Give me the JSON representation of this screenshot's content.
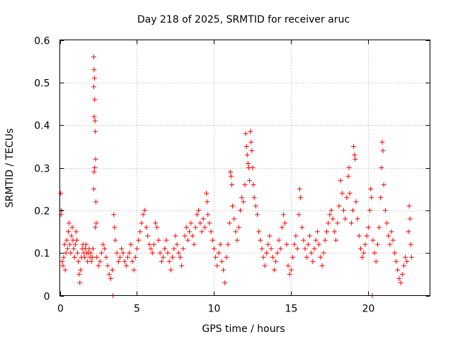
{
  "chart_data": {
    "type": "scatter",
    "title": "Day 218 of 2025, SRMTID for receiver aruc",
    "xlabel": "GPS time / hours",
    "ylabel": "SRMTID / TECUs",
    "xlim": [
      0,
      24
    ],
    "ylim": [
      0,
      0.6
    ],
    "x_ticks": [
      0,
      5,
      10,
      15,
      20
    ],
    "x_tick_labels": [
      "0",
      "5",
      "10",
      "15",
      "20"
    ],
    "y_ticks": [
      0,
      0.1,
      0.2,
      0.3,
      0.4,
      0.5,
      0.6
    ],
    "y_tick_labels": [
      "0",
      "0.1",
      "0.2",
      "0.3",
      "0.4",
      "0.5",
      "0.6"
    ],
    "grid": true,
    "marker": "+",
    "marker_color": "#ff0000",
    "series": [
      {
        "name": "SRMTID",
        "points": [
          [
            0.05,
            0.24
          ],
          [
            0.1,
            0.2
          ],
          [
            0.08,
            0.19
          ],
          [
            0.15,
            0.08
          ],
          [
            0.2,
            0.07
          ],
          [
            0.25,
            0.09
          ],
          [
            0.3,
            0.12
          ],
          [
            0.35,
            0.06
          ],
          [
            0.4,
            0.1
          ],
          [
            0.45,
            0.13
          ],
          [
            0.5,
            0.11
          ],
          [
            0.55,
            0.15
          ],
          [
            0.6,
            0.17
          ],
          [
            0.65,
            0.12
          ],
          [
            0.7,
            0.1
          ],
          [
            0.75,
            0.14
          ],
          [
            0.8,
            0.16
          ],
          [
            0.85,
            0.13
          ],
          [
            0.9,
            0.11
          ],
          [
            0.95,
            0.09
          ],
          [
            1.0,
            0.12
          ],
          [
            1.05,
            0.15
          ],
          [
            1.1,
            0.13
          ],
          [
            1.15,
            0.1
          ],
          [
            1.2,
            0.08
          ],
          [
            1.25,
            0.05
          ],
          [
            1.3,
            0.03
          ],
          [
            1.35,
            0.06
          ],
          [
            1.4,
            0.09
          ],
          [
            1.45,
            0.11
          ],
          [
            1.5,
            0.12
          ],
          [
            1.55,
            0.1
          ],
          [
            1.6,
            0.09
          ],
          [
            1.65,
            0.11
          ],
          [
            1.7,
            0.12
          ],
          [
            1.75,
            0.1
          ],
          [
            1.8,
            0.08
          ],
          [
            1.85,
            0.1
          ],
          [
            1.9,
            0.11
          ],
          [
            1.95,
            0.09
          ],
          [
            2.0,
            0.1
          ],
          [
            2.05,
            0.08
          ],
          [
            2.1,
            0.09
          ],
          [
            2.15,
            0.11
          ],
          [
            2.2,
            0.56
          ],
          [
            2.22,
            0.53
          ],
          [
            2.24,
            0.51
          ],
          [
            2.2,
            0.49
          ],
          [
            2.26,
            0.46
          ],
          [
            2.22,
            0.42
          ],
          [
            2.28,
            0.41
          ],
          [
            2.3,
            0.385
          ],
          [
            2.32,
            0.32
          ],
          [
            2.26,
            0.3
          ],
          [
            2.22,
            0.29
          ],
          [
            2.2,
            0.25
          ],
          [
            2.34,
            0.22
          ],
          [
            2.36,
            0.17
          ],
          [
            2.3,
            0.16
          ],
          [
            2.4,
            0.09
          ],
          [
            2.5,
            0.07
          ],
          [
            2.6,
            0.08
          ],
          [
            2.7,
            0.1
          ],
          [
            2.8,
            0.12
          ],
          [
            2.9,
            0.11
          ],
          [
            3.0,
            0.09
          ],
          [
            3.1,
            0.07
          ],
          [
            3.2,
            0.05
          ],
          [
            3.3,
            0.04
          ],
          [
            3.4,
            0.06
          ],
          [
            3.45,
            0.0
          ],
          [
            3.5,
            0.19
          ],
          [
            3.55,
            0.16
          ],
          [
            3.6,
            0.13
          ],
          [
            3.7,
            0.1
          ],
          [
            3.8,
            0.08
          ],
          [
            3.9,
            0.09
          ],
          [
            4.0,
            0.11
          ],
          [
            4.1,
            0.1
          ],
          [
            4.2,
            0.08
          ],
          [
            4.3,
            0.07
          ],
          [
            4.4,
            0.09
          ],
          [
            4.5,
            0.1
          ],
          [
            4.6,
            0.12
          ],
          [
            4.7,
            0.08
          ],
          [
            4.8,
            0.06
          ],
          [
            4.9,
            0.09
          ],
          [
            5.0,
            0.11
          ],
          [
            5.1,
            0.13
          ],
          [
            5.2,
            0.15
          ],
          [
            5.3,
            0.17
          ],
          [
            5.4,
            0.19
          ],
          [
            5.5,
            0.2
          ],
          [
            5.6,
            0.16
          ],
          [
            5.7,
            0.14
          ],
          [
            5.8,
            0.12
          ],
          [
            5.9,
            0.11
          ],
          [
            6.0,
            0.1
          ],
          [
            6.1,
            0.12
          ],
          [
            6.2,
            0.17
          ],
          [
            6.3,
            0.16
          ],
          [
            6.4,
            0.13
          ],
          [
            6.5,
            0.1
          ],
          [
            6.6,
            0.08
          ],
          [
            6.7,
            0.09
          ],
          [
            6.8,
            0.11
          ],
          [
            6.9,
            0.13
          ],
          [
            7.0,
            0.1
          ],
          [
            7.1,
            0.08
          ],
          [
            7.2,
            0.06
          ],
          [
            7.3,
            0.09
          ],
          [
            7.4,
            0.11
          ],
          [
            7.5,
            0.14
          ],
          [
            7.6,
            0.12
          ],
          [
            7.7,
            0.1
          ],
          [
            7.8,
            0.09
          ],
          [
            7.9,
            0.07
          ],
          [
            8.0,
            0.11
          ],
          [
            8.1,
            0.14
          ],
          [
            8.2,
            0.16
          ],
          [
            8.3,
            0.13
          ],
          [
            8.4,
            0.15
          ],
          [
            8.5,
            0.17
          ],
          [
            8.6,
            0.14
          ],
          [
            8.7,
            0.12
          ],
          [
            8.8,
            0.16
          ],
          [
            8.9,
            0.19
          ],
          [
            9.0,
            0.2
          ],
          [
            9.1,
            0.17
          ],
          [
            9.2,
            0.15
          ],
          [
            9.3,
            0.18
          ],
          [
            9.4,
            0.16
          ],
          [
            9.5,
            0.24
          ],
          [
            9.55,
            0.22
          ],
          [
            9.6,
            0.19
          ],
          [
            9.7,
            0.17
          ],
          [
            9.8,
            0.15
          ],
          [
            9.9,
            0.13
          ],
          [
            10.0,
            0.11
          ],
          [
            10.1,
            0.09
          ],
          [
            10.2,
            0.07
          ],
          [
            10.3,
            0.1
          ],
          [
            10.4,
            0.12
          ],
          [
            10.5,
            0.08
          ],
          [
            10.6,
            0.06
          ],
          [
            10.7,
            0.03
          ],
          [
            10.8,
            0.09
          ],
          [
            10.9,
            0.12
          ],
          [
            11.0,
            0.17
          ],
          [
            11.05,
            0.29
          ],
          [
            11.1,
            0.28
          ],
          [
            11.15,
            0.26
          ],
          [
            11.2,
            0.21
          ],
          [
            11.3,
            0.18
          ],
          [
            11.4,
            0.15
          ],
          [
            11.5,
            0.13
          ],
          [
            11.6,
            0.16
          ],
          [
            11.7,
            0.2
          ],
          [
            11.8,
            0.23
          ],
          [
            11.9,
            0.22
          ],
          [
            12.0,
            0.26
          ],
          [
            12.05,
            0.38
          ],
          [
            12.1,
            0.35
          ],
          [
            12.15,
            0.33
          ],
          [
            12.2,
            0.31
          ],
          [
            12.25,
            0.3
          ],
          [
            12.3,
            0.27
          ],
          [
            12.35,
            0.385
          ],
          [
            12.4,
            0.36
          ],
          [
            12.45,
            0.34
          ],
          [
            12.5,
            0.3
          ],
          [
            12.55,
            0.26
          ],
          [
            12.6,
            0.23
          ],
          [
            12.7,
            0.21
          ],
          [
            12.8,
            0.19
          ],
          [
            12.9,
            0.15
          ],
          [
            13.0,
            0.13
          ],
          [
            13.1,
            0.11
          ],
          [
            13.2,
            0.09
          ],
          [
            13.3,
            0.07
          ],
          [
            13.4,
            0.1
          ],
          [
            13.5,
            0.12
          ],
          [
            13.6,
            0.14
          ],
          [
            13.7,
            0.11
          ],
          [
            13.8,
            0.09
          ],
          [
            13.9,
            0.06
          ],
          [
            14.0,
            0.08
          ],
          [
            14.1,
            0.1
          ],
          [
            14.2,
            0.13
          ],
          [
            14.3,
            0.11
          ],
          [
            14.4,
            0.16
          ],
          [
            14.5,
            0.19
          ],
          [
            14.6,
            0.17
          ],
          [
            14.7,
            0.12
          ],
          [
            14.8,
            0.07
          ],
          [
            14.9,
            0.05
          ],
          [
            15.0,
            0.06
          ],
          [
            15.1,
            0.09
          ],
          [
            15.2,
            0.12
          ],
          [
            15.3,
            0.14
          ],
          [
            15.4,
            0.11
          ],
          [
            15.5,
            0.19
          ],
          [
            15.55,
            0.25
          ],
          [
            15.6,
            0.23
          ],
          [
            15.7,
            0.16
          ],
          [
            15.8,
            0.13
          ],
          [
            15.9,
            0.11
          ],
          [
            16.0,
            0.09
          ],
          [
            16.1,
            0.12
          ],
          [
            16.2,
            0.14
          ],
          [
            16.3,
            0.1
          ],
          [
            16.4,
            0.08
          ],
          [
            16.5,
            0.11
          ],
          [
            16.6,
            0.13
          ],
          [
            16.7,
            0.15
          ],
          [
            16.8,
            0.12
          ],
          [
            16.9,
            0.09
          ],
          [
            17.0,
            0.07
          ],
          [
            17.1,
            0.1
          ],
          [
            17.2,
            0.13
          ],
          [
            17.3,
            0.15
          ],
          [
            17.4,
            0.17
          ],
          [
            17.5,
            0.19
          ],
          [
            17.6,
            0.2
          ],
          [
            17.7,
            0.18
          ],
          [
            17.8,
            0.15
          ],
          [
            17.9,
            0.13
          ],
          [
            18.0,
            0.17
          ],
          [
            18.1,
            0.21
          ],
          [
            18.2,
            0.27
          ],
          [
            18.3,
            0.24
          ],
          [
            18.4,
            0.2
          ],
          [
            18.5,
            0.18
          ],
          [
            18.6,
            0.23
          ],
          [
            18.7,
            0.28
          ],
          [
            18.75,
            0.3
          ],
          [
            18.8,
            0.24
          ],
          [
            18.9,
            0.17
          ],
          [
            19.0,
            0.2
          ],
          [
            19.05,
            0.35
          ],
          [
            19.1,
            0.33
          ],
          [
            19.15,
            0.32
          ],
          [
            19.2,
            0.22
          ],
          [
            19.3,
            0.18
          ],
          [
            19.4,
            0.14
          ],
          [
            19.5,
            0.11
          ],
          [
            19.6,
            0.09
          ],
          [
            19.7,
            0.1
          ],
          [
            19.8,
            0.12
          ],
          [
            19.9,
            0.14
          ],
          [
            20.0,
            0.16
          ],
          [
            20.1,
            0.2
          ],
          [
            20.15,
            0.25
          ],
          [
            20.2,
            0.23
          ],
          [
            20.25,
            0.0
          ],
          [
            20.3,
            0.13
          ],
          [
            20.4,
            0.1
          ],
          [
            20.5,
            0.08
          ],
          [
            20.6,
            0.12
          ],
          [
            20.7,
            0.16
          ],
          [
            20.8,
            0.23
          ],
          [
            20.85,
            0.3
          ],
          [
            20.9,
            0.36
          ],
          [
            20.95,
            0.34
          ],
          [
            21.0,
            0.26
          ],
          [
            21.1,
            0.2
          ],
          [
            21.2,
            0.17
          ],
          [
            21.3,
            0.14
          ],
          [
            21.4,
            0.12
          ],
          [
            21.5,
            0.15
          ],
          [
            21.6,
            0.13
          ],
          [
            21.7,
            0.1
          ],
          [
            21.8,
            0.08
          ],
          [
            21.9,
            0.06
          ],
          [
            22.0,
            0.04
          ],
          [
            22.1,
            0.03
          ],
          [
            22.2,
            0.05
          ],
          [
            22.3,
            0.07
          ],
          [
            22.4,
            0.09
          ],
          [
            22.5,
            0.08
          ],
          [
            22.6,
            0.15
          ],
          [
            22.65,
            0.21
          ],
          [
            22.7,
            0.18
          ],
          [
            22.75,
            0.12
          ],
          [
            22.8,
            0.09
          ]
        ]
      }
    ]
  }
}
